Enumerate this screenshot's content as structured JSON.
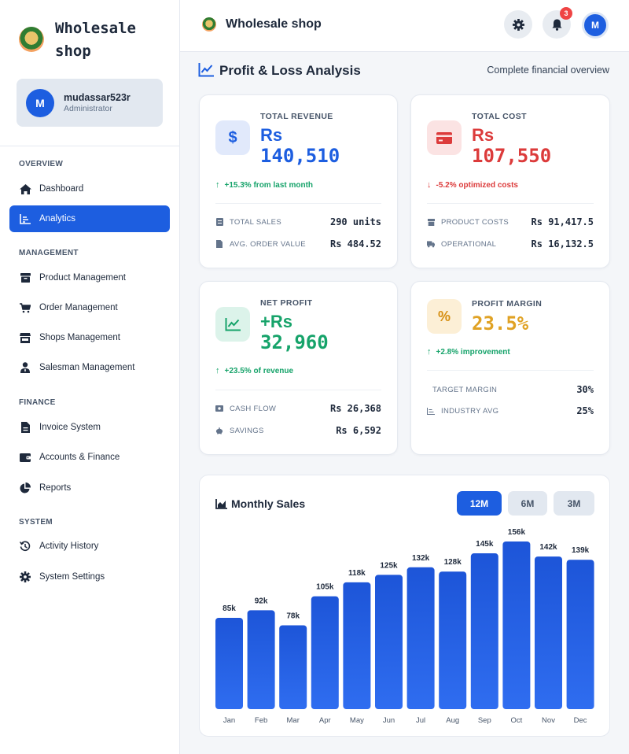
{
  "brand": {
    "title": "Wholesale shop"
  },
  "user": {
    "initial": "M",
    "name": "mudassar523r",
    "role": "Administrator"
  },
  "nav": {
    "overview": "OVERVIEW",
    "dashboard": "Dashboard",
    "analytics": "Analytics",
    "management": "MANAGEMENT",
    "product": "Product Management",
    "order": "Order Management",
    "shops": "Shops Management",
    "salesman": "Salesman Management",
    "finance": "FINANCE",
    "invoice": "Invoice System",
    "accounts": "Accounts & Finance",
    "reports": "Reports",
    "system": "SYSTEM",
    "activity": "Activity History",
    "settings": "System Settings"
  },
  "topbar": {
    "title": "Wholesale shop",
    "notifications": "3",
    "avatar": "M"
  },
  "page": {
    "title": "Profit & Loss Analysis",
    "subtitle": "Complete financial overview"
  },
  "revenue": {
    "label": "TOTAL REVENUE",
    "currency": "Rs",
    "value": "140,510",
    "trend": "+15.3% from last month",
    "stat1_label": "TOTAL SALES",
    "stat1_value": "290 units",
    "stat2_label": "AVG. ORDER VALUE",
    "stat2_value": "Rs 484.52"
  },
  "cost": {
    "label": "TOTAL COST",
    "currency": "Rs",
    "value": "107,550",
    "trend": "-5.2% optimized costs",
    "stat1_label": "PRODUCT COSTS",
    "stat1_value": "Rs 91,417.5",
    "stat2_label": "OPERATIONAL",
    "stat2_value": "Rs 16,132.5"
  },
  "profit": {
    "label": "NET PROFIT",
    "currency": "+Rs",
    "value": "32,960",
    "trend": "+23.5% of revenue",
    "stat1_label": "CASH FLOW",
    "stat1_value": "Rs 26,368",
    "stat2_label": "SAVINGS",
    "stat2_value": "Rs 6,592"
  },
  "margin": {
    "label": "PROFIT MARGIN",
    "value": "23.5%",
    "trend": "+2.8% improvement",
    "stat1_label": "TARGET MARGIN",
    "stat1_value": "30%",
    "stat2_label": "INDUSTRY AVG",
    "stat2_value": "25%"
  },
  "colors": {
    "primary": "#1d5ee0",
    "green": "#16a36a",
    "red": "#dc3b3b",
    "amber": "#e0a224"
  },
  "chart_header": {
    "title": "Monthly Sales",
    "ranges": [
      "12M",
      "6M",
      "3M"
    ],
    "active_range": "12M"
  },
  "chart_data": {
    "type": "bar",
    "title": "Monthly Sales",
    "categories": [
      "Jan",
      "Feb",
      "Mar",
      "Apr",
      "May",
      "Jun",
      "Jul",
      "Aug",
      "Sep",
      "Oct",
      "Nov",
      "Dec"
    ],
    "values": [
      85,
      92,
      78,
      105,
      118,
      125,
      132,
      128,
      145,
      156,
      142,
      139
    ],
    "labels": [
      "85k",
      "92k",
      "78k",
      "105k",
      "118k",
      "125k",
      "132k",
      "128k",
      "145k",
      "156k",
      "142k",
      "139k"
    ],
    "ylim": [
      0,
      156
    ],
    "grid": false
  }
}
